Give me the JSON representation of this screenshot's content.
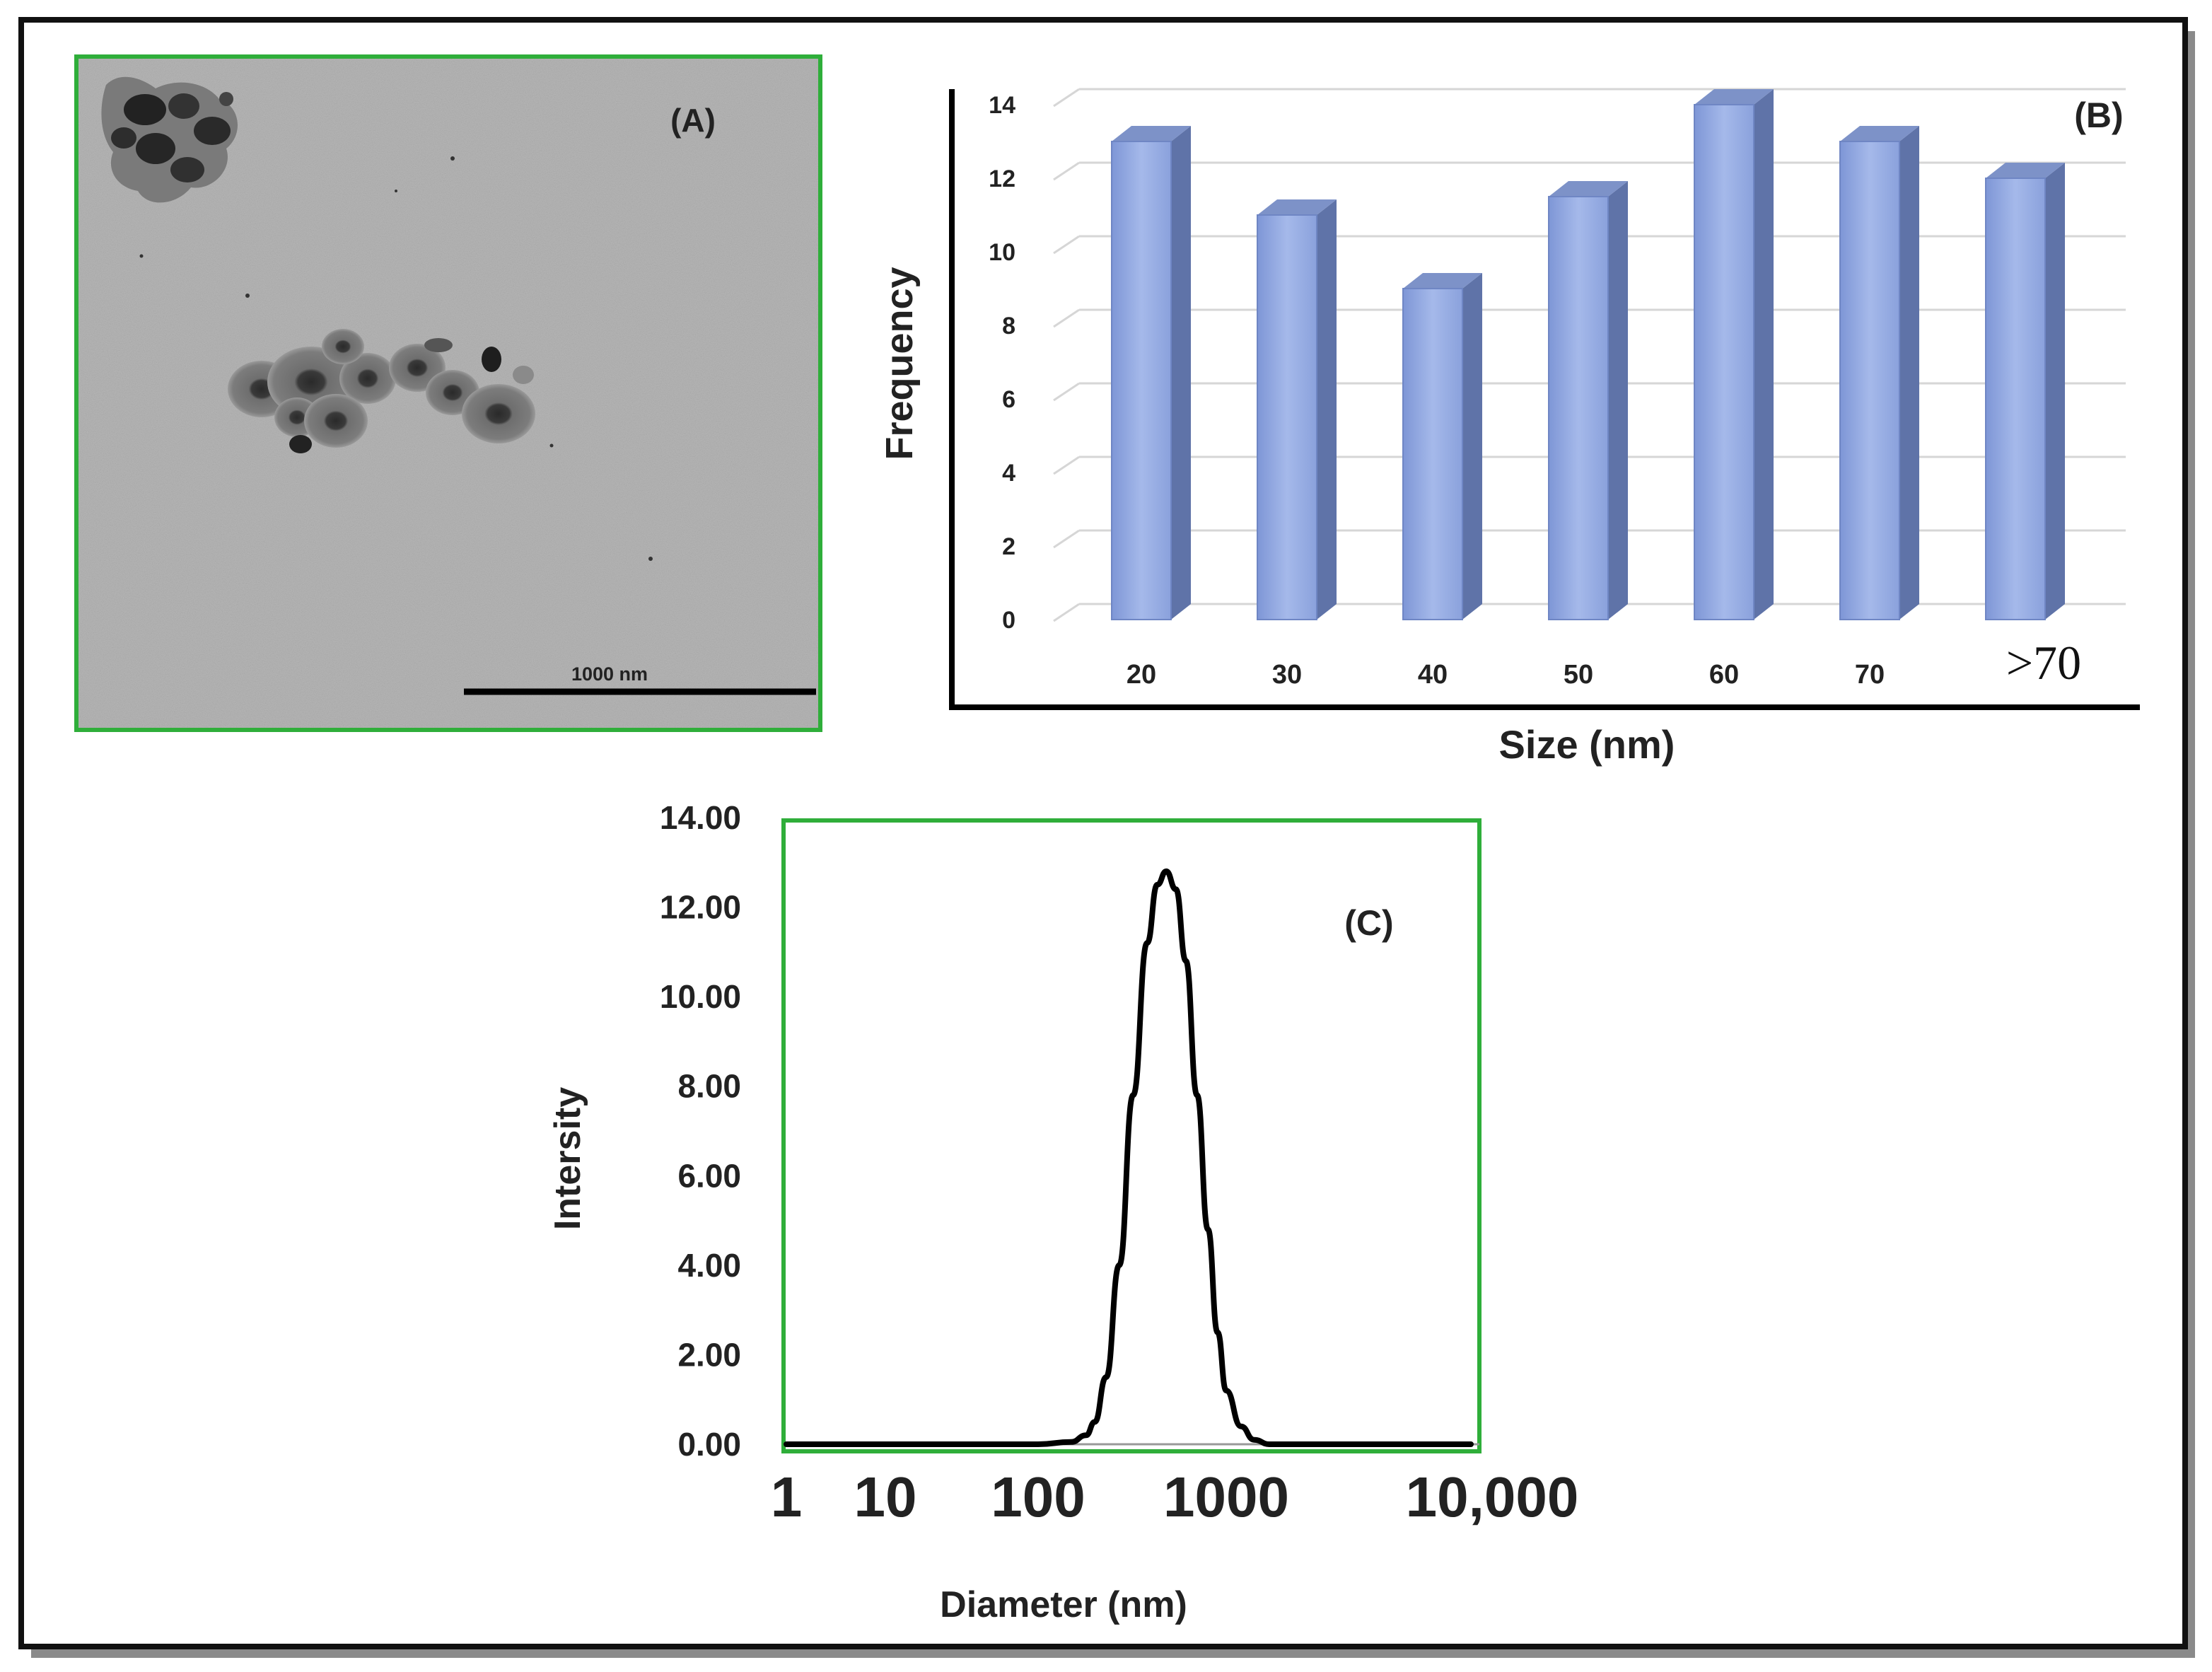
{
  "figure": {
    "panel_a": {
      "label": "(A)",
      "scale_bar_label": "1000 nm",
      "image_kind": "TEM micrograph of nanoparticle clusters"
    },
    "panel_b": {
      "label": "(B)"
    },
    "panel_c": {
      "label": "(C)"
    }
  },
  "chart_data": [
    {
      "id": "panel-b",
      "type": "bar",
      "style": "3d-column",
      "title": "",
      "xlabel": "Size (nm)",
      "ylabel": "Frequency",
      "categories": [
        "20",
        "30",
        "40",
        "50",
        "60",
        "70",
        ">70"
      ],
      "values": [
        13,
        11,
        9,
        11.5,
        14,
        13,
        12
      ],
      "yticks": [
        "0",
        "2",
        "4",
        "6",
        "8",
        "10",
        "12",
        "14"
      ],
      "ylim": [
        0,
        14
      ],
      "grid": true,
      "bar_color": "#8fa8e0"
    },
    {
      "id": "panel-c",
      "type": "line",
      "title": "",
      "xlabel": "Diameter (nm)",
      "ylabel": "Intersity",
      "xscale": "log",
      "xticks": [
        "1",
        "10",
        "100",
        "1000",
        "10,000"
      ],
      "yticks": [
        "0.00",
        "2.00",
        "4.00",
        "6.00",
        "8.00",
        "10.00",
        "12.00",
        "14.00"
      ],
      "ylim": [
        0,
        14
      ],
      "series": [
        {
          "name": "Intensity",
          "x": [
            1,
            10,
            100,
            150,
            180,
            200,
            230,
            270,
            320,
            380,
            430,
            480,
            540,
            610,
            700,
            800,
            900,
            1000,
            1150,
            1300,
            1500,
            2000,
            10000
          ],
          "y": [
            0,
            0,
            0,
            0.05,
            0.2,
            0.5,
            1.5,
            4.0,
            7.8,
            11.2,
            12.5,
            12.8,
            12.4,
            10.8,
            7.8,
            4.8,
            2.5,
            1.2,
            0.4,
            0.1,
            0,
            0,
            0
          ]
        }
      ],
      "line_color": "#000000"
    }
  ]
}
